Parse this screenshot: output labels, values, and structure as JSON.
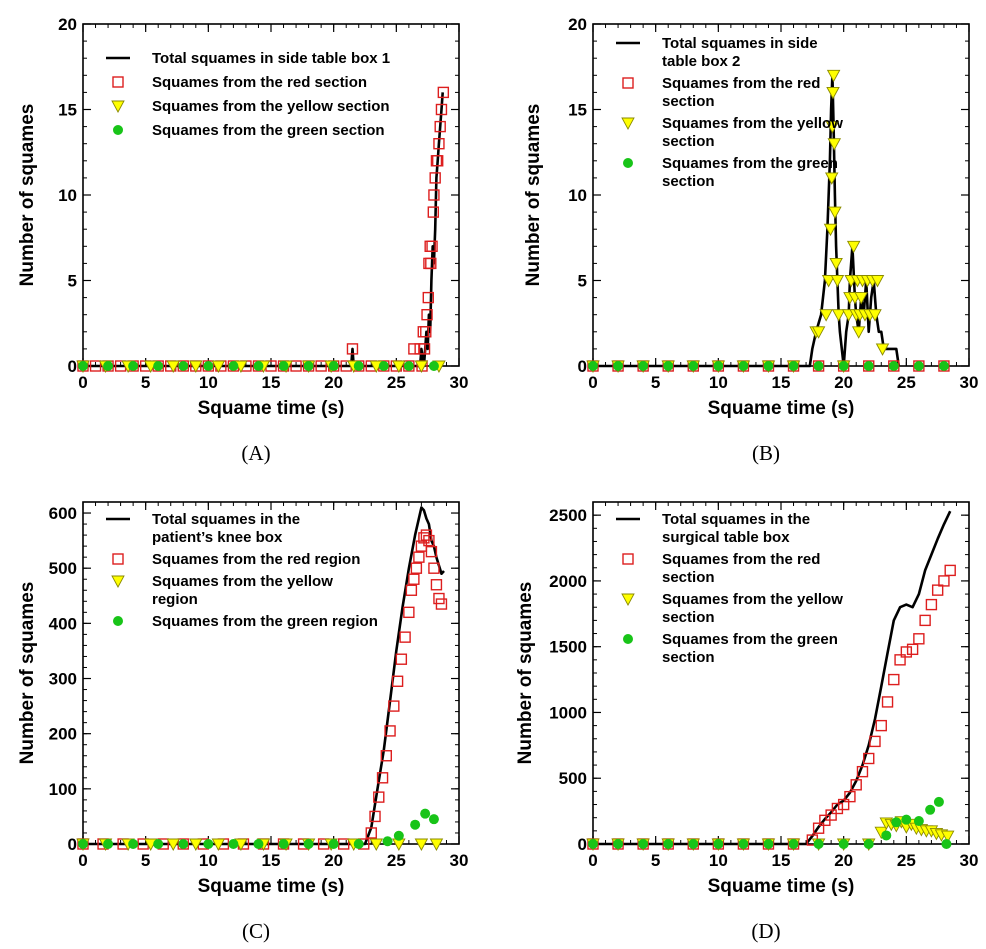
{
  "colors": {
    "total": "#000000",
    "red": "#dd1e1e",
    "yellow": "#ffff00",
    "yellow_edge": "#8a8a00",
    "green": "#18c418"
  },
  "chart_data": [
    {
      "type": "line",
      "panel": "(A)",
      "xlabel": "Squame time (s)",
      "ylabel": "Number of squames",
      "xlim": [
        0,
        30
      ],
      "ylim": [
        0,
        20
      ],
      "xticks": [
        0,
        5,
        10,
        15,
        20,
        25,
        30
      ],
      "yticks": [
        0,
        5,
        10,
        15,
        20
      ],
      "legend_position": "top-left",
      "series": [
        {
          "name": "Total squames in side table box 1",
          "kind": "line",
          "x": [
            0,
            21.4,
            21.5,
            21.6,
            26.9,
            27.0,
            27.2,
            27.3,
            27.4,
            27.5,
            27.6,
            27.7,
            27.8,
            27.9,
            28.0,
            28.1,
            28.2,
            28.3,
            28.4,
            28.5,
            28.6,
            28.7
          ],
          "y": [
            0,
            0,
            1,
            0,
            0,
            1,
            0,
            1,
            2,
            1,
            3,
            2,
            5,
            7,
            6,
            8,
            11,
            12,
            13,
            14,
            15,
            16
          ]
        },
        {
          "name": "Squames from the red section",
          "kind": "square",
          "x": [
            0,
            1,
            2,
            3,
            4,
            5,
            6,
            7,
            8,
            9,
            10,
            11,
            12,
            13,
            14,
            15,
            16,
            17,
            18,
            19,
            20,
            21,
            21.5,
            22,
            23,
            24,
            25,
            26,
            26.4,
            26.9,
            27.05,
            27.15,
            27.25,
            27.35,
            27.45,
            27.55,
            27.6,
            27.7,
            27.75,
            27.85,
            27.95,
            28.0,
            28.1,
            28.2,
            28.3,
            28.4,
            28.5,
            28.6,
            28.75
          ],
          "y": [
            0,
            0,
            0,
            0,
            0,
            0,
            0,
            0,
            0,
            0,
            0,
            0,
            0,
            0,
            0,
            0,
            0,
            0,
            0,
            0,
            0,
            0,
            1,
            0,
            0,
            0,
            0,
            0,
            1,
            1,
            0,
            2,
            1,
            2,
            3,
            4,
            6,
            7,
            6,
            7,
            9,
            10,
            11,
            12,
            12,
            13,
            14,
            15,
            16
          ]
        },
        {
          "name": "Squames from the yellow section",
          "kind": "triangle",
          "x": [
            0,
            1.8,
            3.6,
            5.4,
            7.2,
            9.0,
            10.8,
            12.6,
            14.4,
            16.2,
            18.0,
            19.8,
            21.6,
            23.4,
            25.2,
            27.0,
            28.4
          ],
          "y": [
            0,
            0,
            0,
            0,
            0,
            0,
            0,
            0,
            0,
            0,
            0,
            0,
            0,
            0,
            0,
            0,
            0
          ]
        },
        {
          "name": "Squames from the green section",
          "kind": "circle",
          "x": [
            0,
            2,
            4,
            6,
            8,
            10,
            12,
            14,
            16,
            18,
            20,
            22,
            24,
            26,
            28
          ],
          "y": [
            0,
            0,
            0,
            0,
            0,
            0,
            0,
            0,
            0,
            0,
            0,
            0,
            0,
            0,
            0
          ]
        }
      ]
    },
    {
      "type": "line",
      "panel": "(B)",
      "xlabel": "Squame time (s)",
      "ylabel": "Number of squames",
      "xlim": [
        0,
        30
      ],
      "ylim": [
        0,
        20
      ],
      "xticks": [
        0,
        5,
        10,
        15,
        20,
        25,
        30
      ],
      "yticks": [
        0,
        5,
        10,
        15,
        20
      ],
      "legend_position": "top-left",
      "series": [
        {
          "name": "Total squames in side table box 2",
          "kind": "line",
          "x": [
            0,
            17.3,
            17.5,
            17.8,
            18.2,
            18.5,
            18.7,
            18.9,
            19.0,
            19.1,
            19.2,
            19.3,
            19.4,
            19.5,
            19.6,
            19.7,
            19.85,
            20.0,
            20.2,
            20.4,
            20.5,
            20.7,
            20.9,
            21.0,
            21.2,
            21.4,
            21.6,
            21.8,
            22.0,
            22.2,
            22.4,
            22.6,
            22.8,
            23.0,
            23.2,
            23.8,
            24.2,
            24.4
          ],
          "y": [
            0,
            0,
            1,
            2,
            3,
            5,
            8,
            12,
            15,
            17,
            14,
            10,
            7,
            5,
            3,
            2,
            1,
            0,
            2,
            3,
            5,
            7,
            4,
            3,
            2,
            4,
            3,
            5,
            2,
            4,
            5,
            3,
            2,
            2,
            1,
            1,
            1,
            0
          ]
        },
        {
          "name": "Squames from the red section",
          "kind": "square",
          "x": [
            0,
            2,
            4,
            6,
            8,
            10,
            12,
            14,
            16,
            18,
            20,
            22,
            24,
            26,
            28
          ],
          "y": [
            0,
            0,
            0,
            0,
            0,
            0,
            0,
            0,
            0,
            0,
            0,
            0,
            0,
            0,
            0
          ]
        },
        {
          "name": "Squames from the yellow section",
          "kind": "triangle",
          "x": [
            0,
            2,
            4,
            6,
            8,
            10,
            12,
            14,
            16,
            17.8,
            18.0,
            18.6,
            18.8,
            18.95,
            19.05,
            19.1,
            19.15,
            19.2,
            19.25,
            19.3,
            19.4,
            19.5,
            19.6,
            20.0,
            20.4,
            20.5,
            20.6,
            20.8,
            20.9,
            21.0,
            21.1,
            21.2,
            21.3,
            21.4,
            21.5,
            21.7,
            21.9,
            22.1,
            22.3,
            22.5,
            22.7,
            23.1
          ],
          "y": [
            0,
            0,
            0,
            0,
            0,
            0,
            0,
            0,
            0,
            2,
            2,
            3,
            5,
            8,
            11,
            14,
            16,
            17,
            13,
            9,
            6,
            5,
            3,
            0,
            3,
            4,
            5,
            7,
            4,
            3,
            5,
            2,
            3,
            4,
            5,
            3,
            5,
            3,
            5,
            3,
            5,
            1
          ]
        },
        {
          "name": "Squames from the green section",
          "kind": "circle",
          "x": [
            0,
            2,
            4,
            6,
            8,
            10,
            12,
            14,
            16,
            18,
            20,
            22,
            24,
            26,
            28
          ],
          "y": [
            0,
            0,
            0,
            0,
            0,
            0,
            0,
            0,
            0,
            0,
            0,
            0,
            0,
            0,
            0
          ]
        }
      ]
    },
    {
      "type": "line",
      "panel": "(C)",
      "xlabel": "Squame time (s)",
      "ylabel": "Number of squames",
      "xlim": [
        0,
        30
      ],
      "ylim": [
        0,
        620
      ],
      "xticks": [
        0,
        5,
        10,
        15,
        20,
        25,
        30
      ],
      "yticks": [
        0,
        100,
        200,
        300,
        400,
        500,
        600
      ],
      "legend_position": "top-left",
      "series": [
        {
          "name": "Total squames in the patient’s knee box",
          "kind": "line",
          "x": [
            0,
            22.5,
            23.0,
            23.5,
            24.0,
            24.5,
            25.0,
            25.5,
            26.0,
            26.5,
            27.0,
            27.2,
            27.4,
            27.6,
            27.8,
            28.0,
            28.2,
            28.4,
            28.6,
            28.8
          ],
          "y": [
            0,
            0,
            30,
            100,
            170,
            260,
            350,
            430,
            500,
            560,
            610,
            605,
            590,
            580,
            550,
            540,
            520,
            505,
            490,
            495
          ]
        },
        {
          "name": "Squames from the red region",
          "kind": "square",
          "x": [
            0,
            1.6,
            3.2,
            4.8,
            6.4,
            8,
            9.6,
            11.2,
            12.8,
            14.4,
            16,
            17.6,
            19.2,
            20.8,
            22.4,
            23.0,
            23.3,
            23.6,
            23.9,
            24.2,
            24.5,
            24.8,
            25.1,
            25.4,
            25.7,
            26.0,
            26.2,
            26.4,
            26.6,
            26.8,
            27.0,
            27.2,
            27.4,
            27.6,
            27.8,
            28.0,
            28.2,
            28.4,
            28.6
          ],
          "y": [
            0,
            0,
            0,
            0,
            0,
            0,
            0,
            0,
            0,
            0,
            0,
            0,
            0,
            0,
            0,
            20,
            50,
            85,
            120,
            160,
            205,
            250,
            295,
            335,
            375,
            420,
            460,
            480,
            500,
            520,
            540,
            555,
            560,
            550,
            530,
            500,
            470,
            445,
            435
          ]
        },
        {
          "name": "Squames from the yellow region",
          "kind": "triangle",
          "x": [
            0,
            1.8,
            3.6,
            5.4,
            7.2,
            9.0,
            10.8,
            12.6,
            14.4,
            16.2,
            18.0,
            19.8,
            21.6,
            23.4,
            25.2,
            27.0,
            28.2
          ],
          "y": [
            0,
            0,
            0,
            0,
            0,
            0,
            0,
            0,
            0,
            0,
            0,
            0,
            0,
            0,
            0,
            0,
            0
          ]
        },
        {
          "name": "Squames from the green region",
          "kind": "circle",
          "x": [
            0,
            2,
            4,
            6,
            8,
            10,
            12,
            14,
            16,
            18,
            20,
            22,
            24.3,
            25.2,
            26.5,
            27.3,
            28.0
          ],
          "y": [
            0,
            0,
            0,
            0,
            0,
            0,
            0,
            0,
            0,
            0,
            0,
            0,
            5,
            15,
            35,
            55,
            45
          ]
        }
      ]
    },
    {
      "type": "line",
      "panel": "(D)",
      "xlabel": "Squame time (s)",
      "ylabel": "Number of squames",
      "xlim": [
        0,
        30
      ],
      "ylim": [
        0,
        2600
      ],
      "xticks": [
        0,
        5,
        10,
        15,
        20,
        25,
        30
      ],
      "yticks": [
        0,
        500,
        1000,
        1500,
        2000,
        2500
      ],
      "legend_position": "top-left",
      "series": [
        {
          "name": "Total squames in the surgical table box",
          "kind": "line",
          "x": [
            0,
            17.0,
            17.5,
            18.0,
            18.5,
            19.0,
            19.5,
            20.0,
            20.5,
            21.0,
            21.5,
            22.0,
            22.5,
            23.0,
            23.5,
            24.0,
            24.5,
            25.0,
            25.5,
            26.0,
            26.5,
            27.0,
            27.5,
            28.0,
            28.5
          ],
          "y": [
            0,
            0,
            60,
            130,
            190,
            240,
            300,
            330,
            390,
            480,
            600,
            750,
            950,
            1200,
            1450,
            1700,
            1800,
            1820,
            1800,
            1900,
            2080,
            2200,
            2320,
            2430,
            2530
          ]
        },
        {
          "name": "Squames from the red section",
          "kind": "square",
          "x": [
            0,
            2,
            4,
            6,
            8,
            10,
            12,
            14,
            16,
            17.5,
            18.0,
            18.5,
            19.0,
            19.5,
            20.0,
            20.5,
            21.0,
            21.5,
            22.0,
            22.5,
            23.0,
            23.5,
            24.0,
            24.5,
            25.0,
            25.5,
            26.0,
            26.5,
            27.0,
            27.5,
            28.0,
            28.5
          ],
          "y": [
            0,
            0,
            0,
            0,
            0,
            0,
            0,
            0,
            0,
            30,
            120,
            180,
            220,
            270,
            300,
            360,
            450,
            550,
            650,
            780,
            900,
            1080,
            1250,
            1400,
            1460,
            1480,
            1560,
            1700,
            1820,
            1930,
            2000,
            2080
          ]
        },
        {
          "name": "Squames from the yellow section",
          "kind": "triangle",
          "x": [
            0,
            2,
            4,
            6,
            8,
            10,
            12,
            14,
            16,
            18,
            20,
            22,
            23.0,
            23.4,
            23.8,
            24.2,
            24.6,
            25.0,
            25.4,
            25.8,
            26.2,
            26.6,
            27.0,
            27.4,
            27.8,
            28.3
          ],
          "y": [
            0,
            0,
            0,
            0,
            0,
            0,
            0,
            0,
            0,
            0,
            0,
            0,
            90,
            160,
            150,
            140,
            170,
            130,
            150,
            120,
            110,
            100,
            100,
            80,
            70,
            60
          ]
        },
        {
          "name": "Squames from the green section",
          "kind": "circle",
          "x": [
            0,
            2,
            4,
            6,
            8,
            10,
            12,
            14,
            16,
            18,
            20,
            22,
            23.4,
            24.2,
            25.0,
            26.0,
            26.9,
            27.6,
            28.2
          ],
          "y": [
            0,
            0,
            0,
            0,
            0,
            0,
            0,
            0,
            0,
            0,
            0,
            0,
            65,
            165,
            185,
            175,
            260,
            320,
            0
          ]
        }
      ]
    }
  ]
}
